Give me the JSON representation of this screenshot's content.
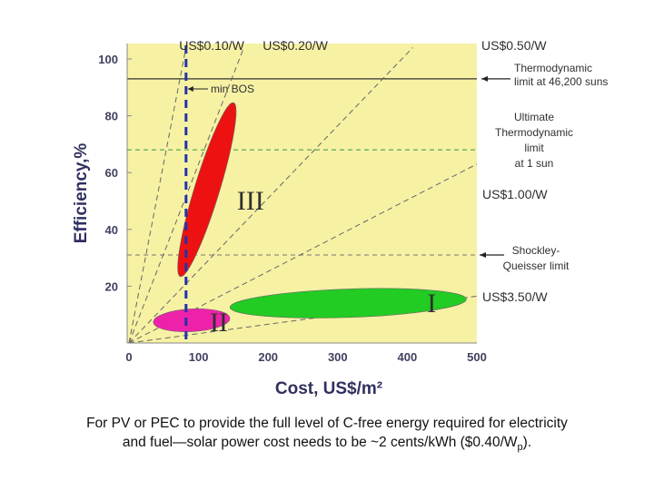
{
  "chart_data": {
    "type": "scatter",
    "xlabel": "Cost, US$/m²",
    "ylabel": "Efficiency,%",
    "xlim": [
      0,
      500
    ],
    "ylim": [
      0,
      100
    ],
    "x_ticks": [
      "0",
      "100",
      "200",
      "300",
      "400",
      "500"
    ],
    "y_ticks": [
      "20",
      "40",
      "60",
      "80",
      "100"
    ],
    "background_color": "#f7f1a4",
    "cost_lines": [
      {
        "label": "US$0.10/W",
        "per_watt": 0.1
      },
      {
        "label": "US$0.20/W",
        "per_watt": 0.2
      },
      {
        "label": "US$0.50/W",
        "per_watt": 0.5
      },
      {
        "label": "US$1.00/W",
        "per_watt": 1.0
      },
      {
        "label": "US$3.50/W",
        "per_watt": 3.5
      }
    ],
    "limits": [
      {
        "label": "Thermodynamic limit at 46,200 suns",
        "efficiency": 93
      },
      {
        "label": "Ultimate Thermodynamic limit at 1 sun",
        "efficiency": 68
      },
      {
        "label": "Shockley-Queisser limit",
        "efficiency": 31
      }
    ],
    "min_bos": {
      "label": "min BOS",
      "cost": 82,
      "color": "#2233aa"
    },
    "regions": [
      {
        "label": "I",
        "color": "#22cc22",
        "cx": 315,
        "cy": 14,
        "rx_cost": 170,
        "ry_eff": 5,
        "angle_deg": -2
      },
      {
        "label": "II",
        "color": "#ee22aa",
        "cx": 90,
        "cy": 8,
        "rx_cost": 55,
        "ry_eff": 4,
        "angle_deg": -3
      },
      {
        "label": "III",
        "color": "#ee1111",
        "cx": 112,
        "cy": 54,
        "rx_cost": 18,
        "ry_eff": 32,
        "angle_deg": 17
      }
    ]
  },
  "caption": {
    "line1": "For PV or PEC to provide the full level of C-free energy required for electricity",
    "line2_main": "and fuel—solar power cost needs to be ~2 cents/kWh ($0.40/W",
    "line2_sub": "p",
    "line2_end": ")."
  }
}
